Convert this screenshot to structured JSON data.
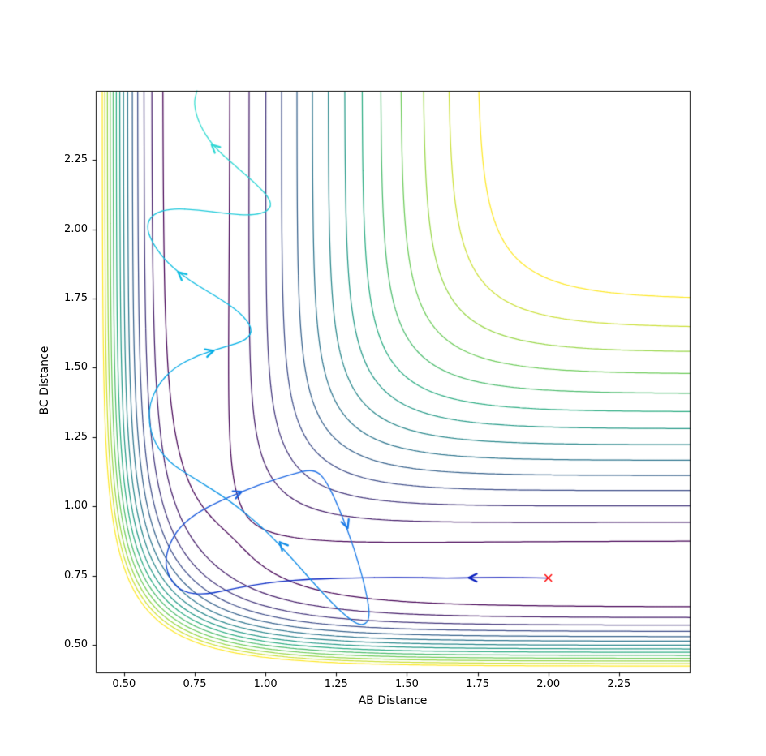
{
  "chart_data": {
    "type": "contour",
    "title": "",
    "xlabel": "AB Distance",
    "ylabel": "BC Distance",
    "xlim": [
      0.4,
      2.5
    ],
    "ylim": [
      0.4,
      2.5
    ],
    "x_ticks": [
      0.5,
      0.75,
      1.0,
      1.25,
      1.5,
      1.75,
      2.0,
      2.25
    ],
    "x_tick_labels": [
      "0.50",
      "0.75",
      "1.00",
      "1.25",
      "1.50",
      "1.75",
      "2.00",
      "2.25"
    ],
    "y_ticks": [
      0.5,
      0.75,
      1.0,
      1.25,
      1.5,
      1.75,
      2.0,
      2.25
    ],
    "y_tick_labels": [
      "0.50",
      "0.75",
      "1.00",
      "1.25",
      "1.50",
      "1.75",
      "2.00",
      "2.25"
    ],
    "grid": false,
    "legend": null,
    "surface": {
      "model": "LEPS collinear A-B-C potential, r3 = r1 + r2",
      "D": 4.7466,
      "beta": 1.942,
      "re": 0.7419,
      "sato": 0.18
    },
    "levels": [
      -4.5,
      -4.25,
      -4.0,
      -3.75,
      -3.5,
      -3.25,
      -3.0,
      -2.75,
      -2.5,
      -2.25,
      -2.0,
      -1.75,
      -1.5,
      -1.25
    ],
    "colormap": {
      "name": "viridis",
      "stops": [
        [
          0,
          "#440154"
        ],
        [
          0.2,
          "#414487"
        ],
        [
          0.4,
          "#2a788e"
        ],
        [
          0.6,
          "#22a884"
        ],
        [
          0.8,
          "#7ad151"
        ],
        [
          1,
          "#fde725"
        ]
      ]
    },
    "trajectory": {
      "description": "reactive trajectory starting at red x, AB approaches then BC dissociates with product vibration",
      "gradient": [
        [
          0,
          "#0008b4"
        ],
        [
          0.33,
          "#1e6fe6"
        ],
        [
          0.66,
          "#00b2e6"
        ],
        [
          1,
          "#3ce0cf"
        ]
      ],
      "linewidth": 1.3,
      "points": [
        [
          2.0,
          0.741
        ],
        [
          1.82,
          0.744
        ],
        [
          1.64,
          0.74
        ],
        [
          1.47,
          0.744
        ],
        [
          1.3,
          0.741
        ],
        [
          1.16,
          0.737
        ],
        [
          1.05,
          0.729
        ],
        [
          0.95,
          0.715
        ],
        [
          0.86,
          0.696
        ],
        [
          0.78,
          0.681
        ],
        [
          0.71,
          0.69
        ],
        [
          0.665,
          0.73
        ],
        [
          0.645,
          0.792
        ],
        [
          0.657,
          0.856
        ],
        [
          0.692,
          0.92
        ],
        [
          0.755,
          0.975
        ],
        [
          0.85,
          1.025
        ],
        [
          0.97,
          1.075
        ],
        [
          1.09,
          1.115
        ],
        [
          1.17,
          1.135
        ],
        [
          1.212,
          1.098
        ],
        [
          1.262,
          0.99
        ],
        [
          1.315,
          0.845
        ],
        [
          1.355,
          0.7
        ],
        [
          1.372,
          0.59
        ],
        [
          1.335,
          0.565
        ],
        [
          1.27,
          0.615
        ],
        [
          1.185,
          0.705
        ],
        [
          1.1,
          0.805
        ],
        [
          1.0,
          0.915
        ],
        [
          0.875,
          1.02
        ],
        [
          0.75,
          1.1
        ],
        [
          0.655,
          1.16
        ],
        [
          0.596,
          1.25
        ],
        [
          0.585,
          1.35
        ],
        [
          0.615,
          1.432
        ],
        [
          0.675,
          1.5
        ],
        [
          0.76,
          1.545
        ],
        [
          0.855,
          1.575
        ],
        [
          0.935,
          1.6
        ],
        [
          0.956,
          1.642
        ],
        [
          0.91,
          1.7
        ],
        [
          0.83,
          1.756
        ],
        [
          0.735,
          1.812
        ],
        [
          0.655,
          1.876
        ],
        [
          0.6,
          1.95
        ],
        [
          0.578,
          2.012
        ],
        [
          0.602,
          2.056
        ],
        [
          0.668,
          2.076
        ],
        [
          0.762,
          2.07
        ],
        [
          0.865,
          2.056
        ],
        [
          0.955,
          2.05
        ],
        [
          1.012,
          2.066
        ],
        [
          1.022,
          2.102
        ],
        [
          0.972,
          2.16
        ],
        [
          0.892,
          2.23
        ],
        [
          0.815,
          2.3
        ],
        [
          0.765,
          2.38
        ],
        [
          0.746,
          2.455
        ],
        [
          0.758,
          2.5
        ]
      ]
    },
    "arrows": [
      {
        "x": 1.73,
        "y": 0.742,
        "angle": 180,
        "t": 0.06
      },
      {
        "x": 0.905,
        "y": 1.048,
        "angle": 23,
        "t": 0.29
      },
      {
        "x": 1.287,
        "y": 0.932,
        "angle": -70,
        "t": 0.385
      },
      {
        "x": 1.058,
        "y": 0.862,
        "angle": 132,
        "t": 0.475
      },
      {
        "x": 0.806,
        "y": 1.558,
        "angle": 17,
        "t": 0.635
      },
      {
        "x": 0.7,
        "y": 1.838,
        "angle": 140,
        "t": 0.735
      },
      {
        "x": 0.818,
        "y": 2.298,
        "angle": 137,
        "t": 0.93
      }
    ],
    "start_marker": {
      "x": 2.0,
      "y": 0.741,
      "symbol": "x",
      "color": "#ff0000"
    }
  }
}
